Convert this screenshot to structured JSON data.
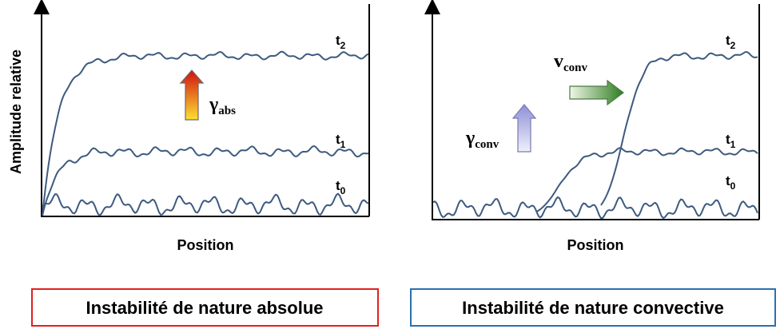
{
  "y_axis_label": "Amplitude relative",
  "panels": [
    {
      "x_axis_label": "Position",
      "curves": [
        {
          "base": "t",
          "sub": "2"
        },
        {
          "base": "t",
          "sub": "1"
        },
        {
          "base": "t",
          "sub": "0"
        }
      ],
      "growth": {
        "base": "γ",
        "sub": "abs"
      },
      "box_label": "Instabilité de nature absolue"
    },
    {
      "x_axis_label": "Position",
      "curves": [
        {
          "base": "t",
          "sub": "2"
        },
        {
          "base": "t",
          "sub": "1"
        },
        {
          "base": "t",
          "sub": "0"
        }
      ],
      "growth": {
        "base": "γ",
        "sub": "conv"
      },
      "velocity": {
        "base": "v",
        "sub": "conv"
      },
      "box_label": "Instabilité de nature convective"
    }
  ]
}
